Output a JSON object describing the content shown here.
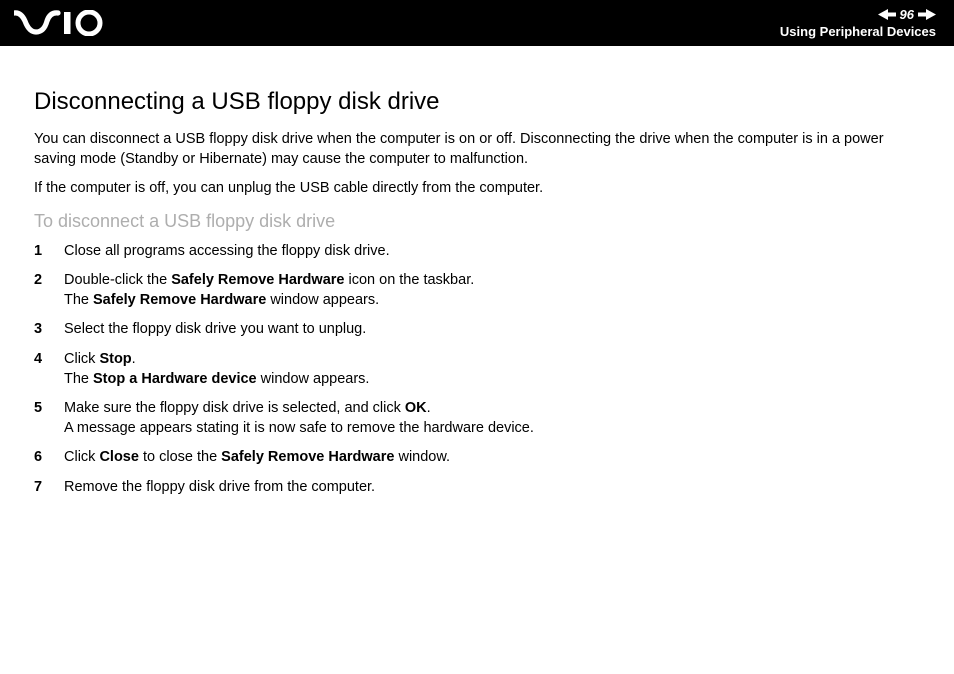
{
  "header": {
    "page_number": "96",
    "section": "Using Peripheral Devices"
  },
  "content": {
    "title": "Disconnecting a USB floppy disk drive",
    "para1": "You can disconnect a USB floppy disk drive when the computer is on or off. Disconnecting the drive when the computer is in a power saving mode (Standby or Hibernate) may cause the computer to malfunction.",
    "para2": "If the computer is off, you can unplug the USB cable directly from the computer.",
    "subheading": "To disconnect a USB floppy disk drive",
    "steps": [
      {
        "num": "1",
        "lines": [
          [
            {
              "t": "Close all programs accessing the floppy disk drive."
            }
          ]
        ]
      },
      {
        "num": "2",
        "lines": [
          [
            {
              "t": "Double-click the "
            },
            {
              "t": "Safely Remove Hardware",
              "b": true
            },
            {
              "t": " icon on the taskbar."
            }
          ],
          [
            {
              "t": "The "
            },
            {
              "t": "Safely Remove Hardware",
              "b": true
            },
            {
              "t": " window appears."
            }
          ]
        ]
      },
      {
        "num": "3",
        "lines": [
          [
            {
              "t": "Select the floppy disk drive you want to unplug."
            }
          ]
        ]
      },
      {
        "num": "4",
        "lines": [
          [
            {
              "t": "Click "
            },
            {
              "t": "Stop",
              "b": true
            },
            {
              "t": "."
            }
          ],
          [
            {
              "t": "The "
            },
            {
              "t": "Stop a Hardware device",
              "b": true
            },
            {
              "t": " window appears."
            }
          ]
        ]
      },
      {
        "num": "5",
        "lines": [
          [
            {
              "t": "Make sure the floppy disk drive is selected, and click "
            },
            {
              "t": "OK",
              "b": true
            },
            {
              "t": "."
            }
          ],
          [
            {
              "t": "A message appears stating it is now safe to remove the hardware device."
            }
          ]
        ]
      },
      {
        "num": "6",
        "lines": [
          [
            {
              "t": "Click "
            },
            {
              "t": "Close",
              "b": true
            },
            {
              "t": " to close the "
            },
            {
              "t": "Safely Remove Hardware",
              "b": true
            },
            {
              "t": " window."
            }
          ]
        ]
      },
      {
        "num": "7",
        "lines": [
          [
            {
              "t": "Remove the floppy disk drive from the computer."
            }
          ]
        ]
      }
    ]
  },
  "colors": {
    "header_bg": "#000000",
    "header_fg": "#ffffff",
    "body_bg": "#ffffff",
    "text": "#000000",
    "subheading": "#aeaeae"
  }
}
